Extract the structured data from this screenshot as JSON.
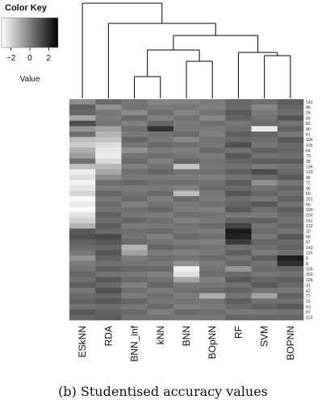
{
  "chart_data": {
    "type": "heatmap",
    "caption": "(b) Studentised accuracy values",
    "color_key": {
      "title": "Color Key",
      "xlabel": "Value",
      "ticks": [
        -2,
        0,
        2
      ],
      "tick_labels": [
        "−2",
        "0",
        "2"
      ],
      "range": [
        -3,
        3
      ],
      "low_color": "#ffffff",
      "high_color": "#000000"
    },
    "columns": [
      "ESkNN",
      "RDA",
      "BNN_inf",
      "kNN",
      "BNN",
      "BOpNN",
      "RF",
      "SVM",
      "BOPNN"
    ],
    "rows": [
      "142",
      "46",
      "24",
      "65",
      "82",
      "90",
      "61",
      "106",
      "118",
      "64",
      "73",
      "38",
      "136",
      "120",
      "96",
      "72",
      "35",
      "69",
      "161",
      "66",
      "109",
      "103",
      "141",
      "122",
      "15",
      "68",
      "67",
      "143",
      "110",
      "5",
      "8",
      "155",
      "153",
      "126",
      "31",
      "42",
      "77",
      "23",
      "93",
      "97",
      "113"
    ],
    "values": [
      [
        -0.3,
        0.5,
        0.2,
        -0.1,
        0.0,
        0.1,
        0.6,
        0.4,
        0.8
      ],
      [
        0.8,
        -0.4,
        0.3,
        0.1,
        0.2,
        0.0,
        0.5,
        -0.2,
        0.6
      ],
      [
        0.6,
        0.2,
        -0.3,
        0.4,
        -0.1,
        0.3,
        0.9,
        0.1,
        0.4
      ],
      [
        -0.9,
        0.1,
        0.5,
        0.0,
        0.3,
        -0.2,
        0.7,
        0.3,
        1.0
      ],
      [
        1.2,
        0.3,
        0.0,
        0.6,
        0.1,
        0.4,
        0.2,
        0.5,
        0.3
      ],
      [
        -0.5,
        -0.8,
        0.4,
        1.8,
        0.2,
        0.1,
        0.4,
        -2.5,
        0.7
      ],
      [
        0.4,
        -1.2,
        0.1,
        0.3,
        0.5,
        0.0,
        0.8,
        0.6,
        0.2
      ],
      [
        -1.4,
        -1.6,
        0.6,
        0.2,
        -0.2,
        0.3,
        0.5,
        0.4,
        0.9
      ],
      [
        -1.8,
        -2.2,
        0.2,
        0.5,
        0.4,
        0.2,
        1.1,
        0.2,
        0.5
      ],
      [
        -1.1,
        -2.4,
        -0.4,
        0.1,
        0.0,
        0.5,
        0.3,
        0.7,
        0.6
      ],
      [
        -0.7,
        -2.6,
        0.3,
        0.4,
        0.2,
        0.1,
        0.9,
        0.3,
        0.4
      ],
      [
        0.3,
        -2.1,
        0.5,
        0.0,
        0.6,
        0.3,
        0.6,
        0.8,
        0.8
      ],
      [
        -1.5,
        -1.3,
        0.0,
        0.3,
        -1.6,
        0.2,
        0.4,
        0.1,
        0.3
      ],
      [
        -2.6,
        -0.9,
        0.4,
        0.6,
        0.3,
        0.4,
        0.7,
        1.2,
        0.5
      ],
      [
        -2.2,
        -0.3,
        0.2,
        0.1,
        0.1,
        0.0,
        0.3,
        0.5,
        0.9
      ],
      [
        -2.7,
        0.4,
        0.6,
        0.4,
        0.4,
        0.3,
        0.8,
        -0.4,
        0.2
      ],
      [
        -2.4,
        0.1,
        0.1,
        0.2,
        0.0,
        0.5,
        0.5,
        0.3,
        0.6
      ],
      [
        -2.0,
        0.6,
        0.3,
        0.5,
        -1.4,
        0.2,
        1.0,
        0.6,
        0.4
      ],
      [
        -2.8,
        0.2,
        0.5,
        0.0,
        0.5,
        0.1,
        0.4,
        0.2,
        0.7
      ],
      [
        -2.5,
        0.5,
        0.0,
        0.3,
        0.2,
        0.4,
        0.6,
        0.9,
        0.3
      ],
      [
        -2.9,
        0.3,
        0.4,
        0.6,
        0.1,
        0.0,
        0.9,
        0.4,
        0.8
      ],
      [
        -2.3,
        0.7,
        0.2,
        0.1,
        0.4,
        0.3,
        0.2,
        0.1,
        0.5
      ],
      [
        -1.9,
        0.4,
        0.6,
        0.4,
        0.0,
        0.2,
        0.7,
        0.7,
        0.4
      ],
      [
        -1.2,
        0.8,
        0.1,
        0.2,
        0.3,
        0.5,
        1.4,
        0.3,
        0.6
      ],
      [
        0.9,
        0.5,
        0.4,
        0.5,
        0.2,
        0.1,
        2.4,
        0.5,
        0.3
      ],
      [
        1.1,
        1.3,
        0.3,
        0.0,
        0.5,
        0.4,
        2.2,
        0.2,
        0.9
      ],
      [
        0.7,
        0.9,
        0.5,
        0.3,
        0.1,
        0.0,
        1.6,
        0.6,
        0.5
      ],
      [
        0.5,
        0.6,
        -1.2,
        0.6,
        0.4,
        0.3,
        0.4,
        0.4,
        0.7
      ],
      [
        0.2,
        1.0,
        -0.8,
        0.1,
        0.0,
        0.2,
        0.8,
        0.1,
        0.4
      ],
      [
        -0.4,
        0.7,
        0.1,
        0.4,
        0.3,
        0.5,
        0.3,
        0.8,
        2.3
      ],
      [
        0.1,
        0.4,
        0.3,
        0.2,
        -0.4,
        0.1,
        0.6,
        0.3,
        1.9
      ],
      [
        0.3,
        0.8,
        0.6,
        0.5,
        -2.6,
        0.3,
        -0.5,
        0.5,
        0.6
      ],
      [
        0.6,
        0.3,
        0.2,
        0.0,
        -2.2,
        0.4,
        0.5,
        0.2,
        0.3
      ],
      [
        0.4,
        0.9,
        0.5,
        0.3,
        -0.9,
        0.0,
        0.9,
        0.6,
        0.8
      ],
      [
        0.8,
        0.5,
        0.0,
        0.6,
        0.2,
        0.2,
        0.4,
        0.9,
        0.5
      ],
      [
        0.2,
        1.1,
        0.4,
        0.1,
        0.4,
        0.5,
        0.7,
        0.3,
        0.2
      ],
      [
        0.5,
        0.6,
        0.1,
        0.4,
        0.1,
        -1.1,
        0.3,
        -0.8,
        0.7
      ],
      [
        0.7,
        0.9,
        0.6,
        0.2,
        0.3,
        0.3,
        0.8,
        0.4,
        0.4
      ],
      [
        0.3,
        0.4,
        0.2,
        0.5,
        0.0,
        0.1,
        0.5,
        0.7,
        0.9
      ],
      [
        0.9,
        0.7,
        0.5,
        0.0,
        0.5,
        0.4,
        0.2,
        0.2,
        0.3
      ],
      [
        0.6,
        0.8,
        0.3,
        0.3,
        0.2,
        0.2,
        0.6,
        0.5,
        0.6
      ]
    ]
  }
}
